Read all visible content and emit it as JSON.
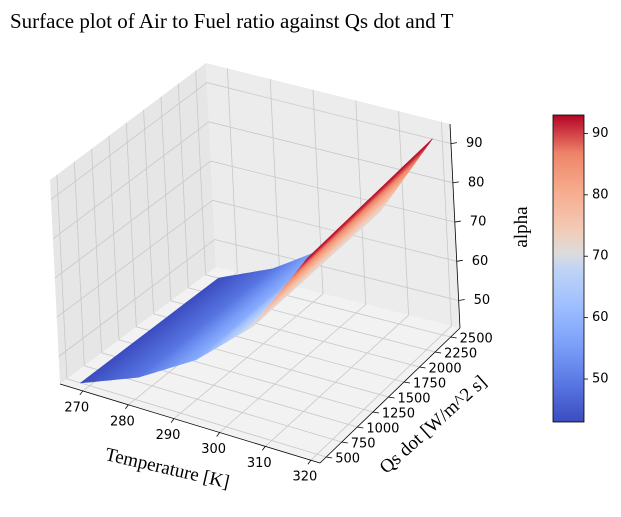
{
  "chart_data": {
    "type": "surface",
    "title": "Surface plot of Air to Fuel ratio against Qs dot and T",
    "xlabel": "Temperature [K]",
    "ylabel": "Qs dot [W/m^2 s]",
    "zlabel": "alpha",
    "x_ticks": [
      270,
      280,
      290,
      300,
      310,
      320
    ],
    "y_ticks": [
      500,
      750,
      1000,
      1250,
      1500,
      1750,
      2000,
      2250,
      2500
    ],
    "z_ticks": [
      50,
      60,
      70,
      80,
      90
    ],
    "xlim": [
      265,
      322
    ],
    "ylim": [
      400,
      2650
    ],
    "zlim": [
      43,
      95
    ],
    "colormap": "coolwarm",
    "colorbar_ticks": [
      50,
      60,
      70,
      80,
      90
    ],
    "colorbar_range": [
      43,
      93
    ],
    "surface": {
      "x_range": [
        268,
        320
      ],
      "y_range": [
        500,
        2500
      ],
      "points": [
        {
          "x": 268,
          "z": 43
        },
        {
          "x": 281,
          "z": 49
        },
        {
          "x": 294,
          "z": 58
        },
        {
          "x": 307,
          "z": 71
        },
        {
          "x": 320,
          "z": 93
        }
      ]
    },
    "grid": true
  }
}
